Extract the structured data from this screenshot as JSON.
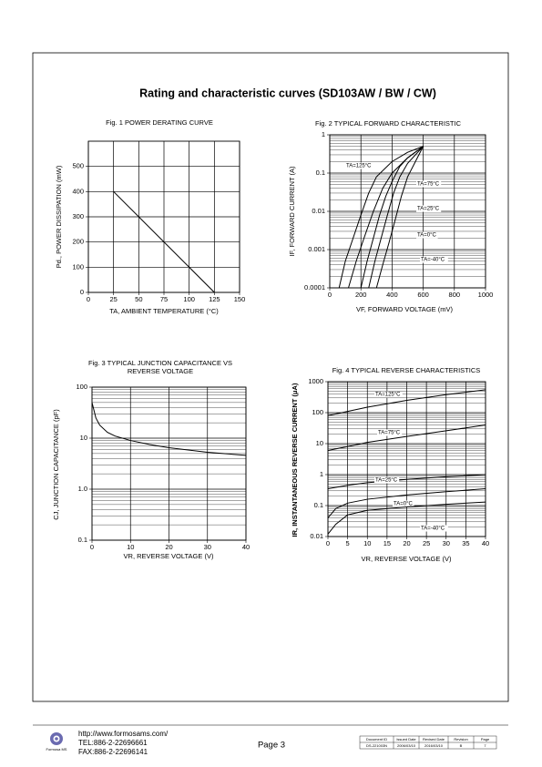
{
  "header": {
    "title": "Rating and characteristic curves (SD103AW / BW / CW)"
  },
  "chart_data": [
    {
      "type": "line",
      "title": "Fig. 1 POWER DERATING CURVE",
      "x_label": "TA, AMBIENT TEMPERATURE (°C)",
      "y_label": "Pd., POWER DISSIPATION (mW)",
      "x": [
        25,
        125
      ],
      "values": [
        400,
        0
      ],
      "color": "#000000",
      "xlim": [
        0,
        150
      ],
      "xticks": [
        0,
        25,
        50,
        75,
        100,
        125,
        150
      ],
      "ylim": [
        0,
        600
      ],
      "yticks": [
        0,
        100,
        200,
        300,
        400,
        500
      ],
      "grid": true
    },
    {
      "type": "line",
      "title": "Fig. 2 TYPICAL FORWARD CHARACTERISTIC",
      "x_label": "VF, FORWARD VOLTAGE (mV)",
      "y_label": "IF, FORWARD CURRENT (A)",
      "log_y": true,
      "xlim": [
        0,
        1000
      ],
      "xticks": [
        0,
        200,
        400,
        600,
        800,
        1000
      ],
      "ylim": [
        0.0001,
        1
      ],
      "yticks": [
        0.0001,
        0.001,
        0.01,
        0.1,
        1
      ],
      "grid": true,
      "series": [
        {
          "name": "TA=125°C",
          "color": "#000000",
          "x": [
            60,
            100,
            150,
            200,
            250,
            300,
            400,
            500,
            600
          ],
          "values": [
            0.0001,
            0.0005,
            0.002,
            0.008,
            0.03,
            0.08,
            0.2,
            0.35,
            0.5
          ]
        },
        {
          "name": "TA=75°C",
          "color": "#000000",
          "x": [
            120,
            170,
            220,
            280,
            340,
            400,
            500,
            600
          ],
          "values": [
            0.0001,
            0.0005,
            0.002,
            0.01,
            0.04,
            0.1,
            0.25,
            0.5
          ]
        },
        {
          "name": "TA=25°C",
          "color": "#000000",
          "x": [
            200,
            240,
            280,
            320,
            360,
            400,
            450,
            500,
            600
          ],
          "values": [
            0.0001,
            0.0005,
            0.002,
            0.008,
            0.025,
            0.06,
            0.15,
            0.25,
            0.5
          ]
        },
        {
          "name": "TA=0°C",
          "color": "#000000",
          "x": [
            250,
            290,
            330,
            370,
            410,
            450,
            500,
            600
          ],
          "values": [
            0.0001,
            0.0005,
            0.002,
            0.008,
            0.03,
            0.08,
            0.18,
            0.5
          ]
        },
        {
          "name": "TA=-40°C",
          "color": "#000000",
          "x": [
            300,
            340,
            380,
            420,
            460,
            500,
            550,
            600
          ],
          "values": [
            0.0001,
            0.0004,
            0.0015,
            0.006,
            0.025,
            0.08,
            0.2,
            0.5
          ]
        }
      ]
    },
    {
      "type": "line",
      "title": [
        "Fig. 3 TYPICAL JUNCTION CAPACITANCE VS",
        "REVERSE VOLTAGE"
      ],
      "x_label": "VR, REVERSE VOLTAGE (V)",
      "y_label": "CJ, JUNCTION CAPACITANCE (pF)",
      "log_y": true,
      "x": [
        0,
        1,
        2,
        4,
        6,
        10,
        15,
        20,
        30,
        40
      ],
      "values": [
        50,
        25,
        18,
        13,
        11,
        9,
        7.5,
        6.5,
        5.3,
        4.6
      ],
      "color": "#000000",
      "xlim": [
        0,
        40
      ],
      "xticks": [
        0,
        10,
        20,
        30,
        40
      ],
      "ylim": [
        0.1,
        100
      ],
      "yticks": [
        0.1,
        {
          "value": 1,
          "label": "1.0"
        },
        10,
        100
      ],
      "grid": true
    },
    {
      "type": "line",
      "title": "Fig. 4 TYPICAL REVERSE CHARACTERISTICS",
      "x_label": "VR, REVERSE VOLTAGE (V)",
      "y_label": "IR, INSTANTANEOUS REVERSE CURRENT (μA)",
      "log_y": true,
      "xlim": [
        0,
        40
      ],
      "xticks": [
        0,
        5,
        10,
        15,
        20,
        25,
        30,
        35,
        40
      ],
      "ylim": [
        0.01,
        1000
      ],
      "yticks": [
        0.01,
        0.1,
        1,
        10,
        100,
        1000
      ],
      "grid": true,
      "series": [
        {
          "name": "TA=125°C",
          "color": "#000000",
          "x": [
            0,
            5,
            10,
            20,
            30,
            40
          ],
          "values": [
            80,
            110,
            150,
            250,
            380,
            550
          ]
        },
        {
          "name": "TA=75°C",
          "color": "#000000",
          "x": [
            0,
            5,
            10,
            20,
            30,
            40
          ],
          "values": [
            6,
            8,
            11,
            17,
            26,
            40
          ]
        },
        {
          "name": "TA=25°C",
          "color": "#000000",
          "x": [
            0,
            5,
            10,
            20,
            30,
            40
          ],
          "values": [
            0.35,
            0.45,
            0.55,
            0.7,
            0.85,
            1
          ]
        },
        {
          "name": "TA=0°C",
          "color": "#000000",
          "x": [
            0,
            2,
            5,
            10,
            20,
            30,
            40
          ],
          "values": [
            0.04,
            0.08,
            0.12,
            0.16,
            0.22,
            0.28,
            0.35
          ]
        },
        {
          "name": "TA=-40°C",
          "color": "#000000",
          "x": [
            0,
            2,
            5,
            10,
            20,
            30,
            40
          ],
          "values": [
            0.012,
            0.025,
            0.05,
            0.07,
            0.09,
            0.11,
            0.13
          ]
        }
      ]
    }
  ],
  "footer": {
    "logo_text": "Formosa MS",
    "url": "http://www.formosams.com/",
    "tel": "TEL:886-2-22696661",
    "fax": "FAX:886-2-22696141",
    "page": "Page 3",
    "doc_table": {
      "headers": [
        "Document ID",
        "Issued Date",
        "Revised Date",
        "Revision",
        "Page"
      ],
      "values": [
        "DS-221003N",
        "2006/03/10",
        "2016/03/10",
        "B",
        "7"
      ]
    }
  }
}
